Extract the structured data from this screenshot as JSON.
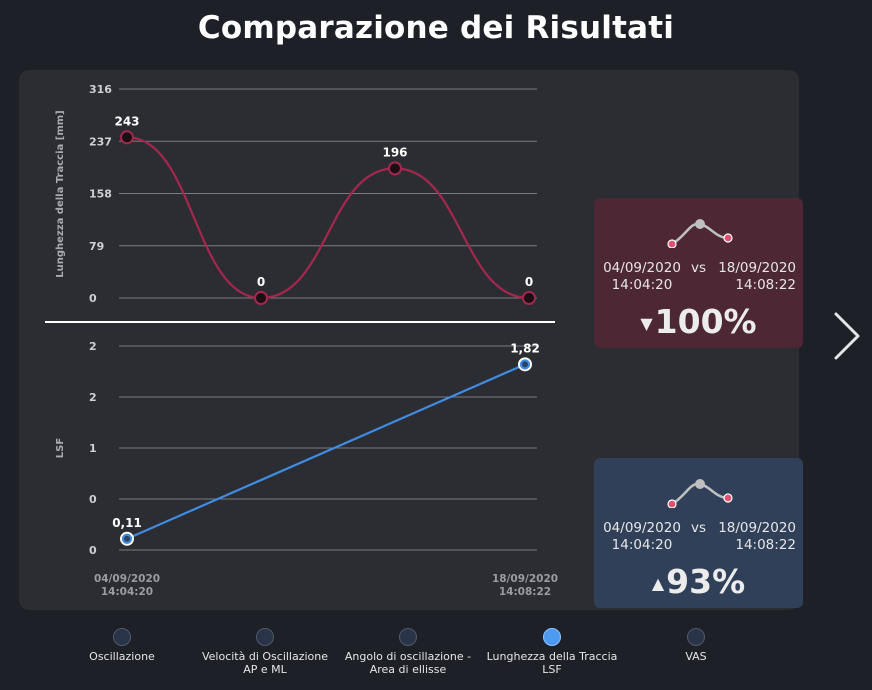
{
  "title": "Comparazione dei Risultati",
  "chart_data": [
    {
      "type": "line",
      "ylabel": "Lunghezza della Traccia [mm]",
      "yticks": [
        "316",
        "237",
        "158",
        "79",
        "0"
      ],
      "ylim": [
        0,
        316
      ],
      "series": [
        {
          "values": [
            243,
            0,
            196,
            0
          ],
          "labels": [
            "243",
            "0",
            "196",
            "0"
          ],
          "color": "#a5274d",
          "smooth": true
        }
      ],
      "grid": true
    },
    {
      "type": "line",
      "ylabel": "LSF",
      "yticks": [
        "2",
        "2",
        "1",
        "0",
        "0"
      ],
      "ylim": [
        0,
        2
      ],
      "x": [
        "04/09/2020 14:04:20",
        "18/09/2020 14:08:22"
      ],
      "xticks": [
        [
          "04/09/2020",
          "14:04:20"
        ],
        [
          "18/09/2020",
          "14:08:22"
        ]
      ],
      "series": [
        {
          "values": [
            0.11,
            1.82
          ],
          "labels": [
            "0,11",
            "1,82"
          ],
          "color": "#3f8ce3"
        }
      ],
      "grid": true
    }
  ],
  "cards": [
    {
      "date1": "04/09/2020",
      "time1": "14:04:20",
      "vs": "vs",
      "date2": "18/09/2020",
      "time2": "14:08:22",
      "arrow": "▼",
      "percent": "100%",
      "bg": "#4d2834"
    },
    {
      "date1": "04/09/2020",
      "time1": "14:04:20",
      "vs": "vs",
      "date2": "18/09/2020",
      "time2": "14:08:22",
      "arrow": "▲",
      "percent": "93%",
      "bg": "#304059"
    }
  ],
  "nav": [
    {
      "line1": "Oscillazione",
      "line2": "",
      "active": false
    },
    {
      "line1": "Velocità di Oscillazione",
      "line2": "AP e ML",
      "active": false
    },
    {
      "line1": "Angolo di oscillazione -",
      "line2": "Area di ellisse",
      "active": false
    },
    {
      "line1": "Lunghezza della Traccia",
      "line2": "LSF",
      "active": true
    },
    {
      "line1": "VAS",
      "line2": "",
      "active": false
    }
  ],
  "icons": {
    "next": "chevron-right-icon",
    "trend": "trend-curve-icon"
  },
  "colors": {
    "red": "#a5274d",
    "blue": "#3f8ce3",
    "background": "#1e2028",
    "panel": "#2c2d32"
  }
}
